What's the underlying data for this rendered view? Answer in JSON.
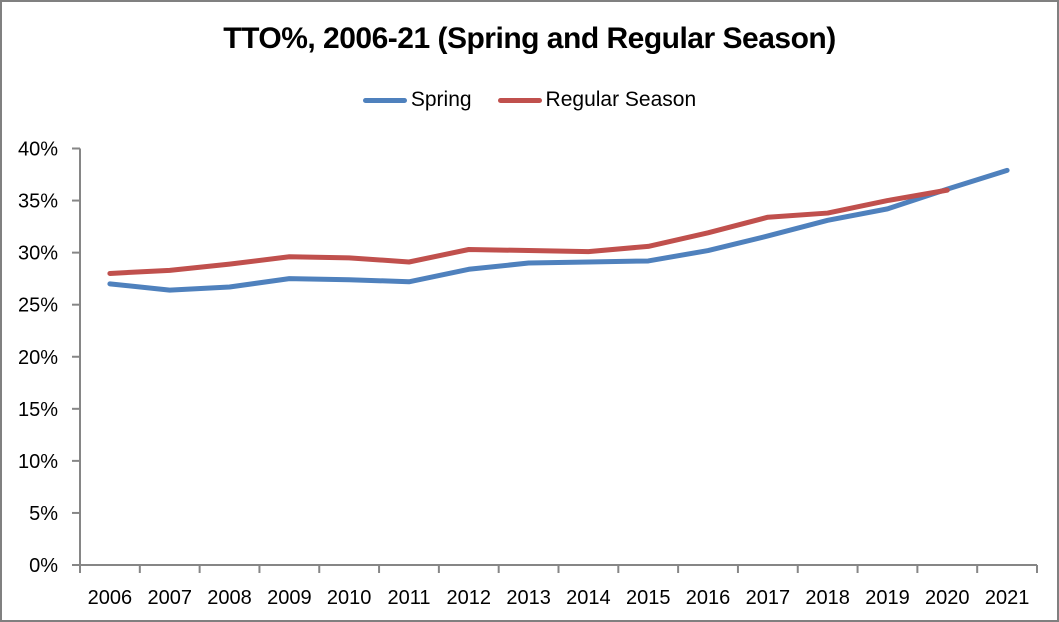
{
  "frame": {
    "background_color": "#FFFFFF",
    "border_color": "#808080"
  },
  "chart_data": {
    "type": "line",
    "title": "TTO%, 2006-21 (Spring and Regular Season)",
    "categories": [
      "2006",
      "2007",
      "2008",
      "2009",
      "2010",
      "2011",
      "2012",
      "2013",
      "2014",
      "2015",
      "2016",
      "2017",
      "2018",
      "2019",
      "2020",
      "2021"
    ],
    "series": [
      {
        "name": "Spring",
        "color": "#4F81BD",
        "values": [
          27.0,
          26.4,
          26.7,
          27.5,
          27.4,
          27.2,
          28.4,
          29.0,
          29.1,
          29.2,
          30.2,
          31.6,
          33.1,
          34.2,
          36.1,
          37.9
        ]
      },
      {
        "name": "Regular Season",
        "color": "#C0504D",
        "values": [
          28.0,
          28.3,
          28.9,
          29.6,
          29.5,
          29.1,
          30.3,
          30.2,
          30.1,
          30.6,
          31.9,
          33.4,
          33.8,
          35.0,
          36.0,
          null
        ]
      }
    ],
    "xlabel": "",
    "ylabel": "",
    "ylim": [
      0,
      40
    ],
    "y_tick_step": 5,
    "y_tick_suffix": "%",
    "y_tick_labels": [
      "0%",
      "5%",
      "10%",
      "15%",
      "20%",
      "25%",
      "30%",
      "35%",
      "40%"
    ],
    "grid": false,
    "legend_position": "top-center",
    "axis_color": "#868686",
    "text_color": "#000000"
  }
}
